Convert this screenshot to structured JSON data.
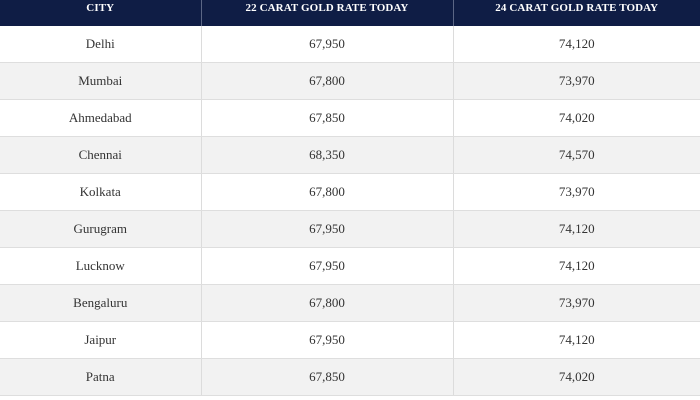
{
  "table": {
    "headers": [
      "CITY",
      "22 CARAT GOLD RATE TODAY",
      "24 CARAT GOLD RATE TODAY"
    ],
    "rows": [
      {
        "city": "Delhi",
        "rate22": "67,950",
        "rate24": "74,120"
      },
      {
        "city": "Mumbai",
        "rate22": "67,800",
        "rate24": "73,970"
      },
      {
        "city": "Ahmedabad",
        "rate22": "67,850",
        "rate24": "74,020"
      },
      {
        "city": "Chennai",
        "rate22": "68,350",
        "rate24": "74,570"
      },
      {
        "city": "Kolkata",
        "rate22": "67,800",
        "rate24": "73,970"
      },
      {
        "city": "Gurugram",
        "rate22": "67,950",
        "rate24": "74,120"
      },
      {
        "city": "Lucknow",
        "rate22": "67,950",
        "rate24": "74,120"
      },
      {
        "city": "Bengaluru",
        "rate22": "67,800",
        "rate24": "73,970"
      },
      {
        "city": "Jaipur",
        "rate22": "67,950",
        "rate24": "74,120"
      },
      {
        "city": "Patna",
        "rate22": "67,850",
        "rate24": "74,020"
      }
    ]
  },
  "colors": {
    "header_bg": "#0f1d45",
    "header_text": "#ffffff",
    "row_alt_bg": "#f2f2f2"
  }
}
